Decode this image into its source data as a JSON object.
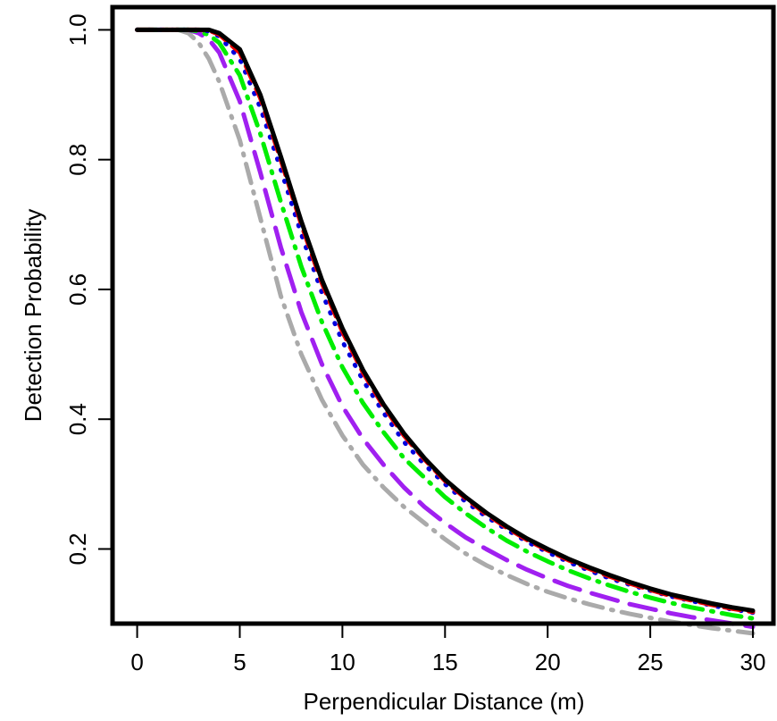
{
  "chart_data": {
    "type": "line",
    "title": "",
    "xlabel": "Perpendicular Distance (m)",
    "ylabel": "Detection Probability",
    "xlim": [
      -1.2,
      31
    ],
    "ylim": [
      0.085,
      1.035
    ],
    "xticks": [
      0,
      5,
      10,
      15,
      20,
      25,
      30
    ],
    "yticks": [
      0.2,
      0.4,
      0.6,
      0.8,
      1.0
    ],
    "xtick_labels": [
      "0",
      "5",
      "10",
      "15",
      "20",
      "25",
      "30"
    ],
    "ytick_labels": [
      "0.2",
      "0.4",
      "0.6",
      "0.8",
      "1.0"
    ],
    "grid": false,
    "legend": "none",
    "series": [
      {
        "color": "#aaaaaa",
        "dash": "dashdot",
        "x": [
          0,
          2,
          2.5,
          3,
          3.5,
          4,
          5,
          6,
          7,
          8,
          9,
          10,
          11,
          12,
          13,
          14,
          15,
          16,
          17,
          18,
          19,
          20,
          21,
          22,
          23,
          24,
          25,
          26,
          27,
          28,
          29,
          30
        ],
        "y": [
          1.0,
          1.0,
          0.995,
          0.98,
          0.955,
          0.92,
          0.83,
          0.71,
          0.59,
          0.5,
          0.43,
          0.375,
          0.33,
          0.295,
          0.265,
          0.24,
          0.215,
          0.193,
          0.175,
          0.16,
          0.146,
          0.134,
          0.124,
          0.115,
          0.107,
          0.1,
          0.094,
          0.088,
          0.083,
          0.078,
          0.074,
          0.07
        ]
      },
      {
        "color": "#a020f0",
        "dash": "longdash",
        "x": [
          0,
          2.5,
          3,
          3.5,
          4,
          5,
          6,
          7,
          8,
          9,
          10,
          11,
          12,
          13,
          14,
          15,
          16,
          17,
          18,
          19,
          20,
          21,
          22,
          23,
          24,
          25,
          26,
          27,
          28,
          29,
          30
        ],
        "y": [
          1.0,
          1.0,
          0.995,
          0.985,
          0.965,
          0.89,
          0.78,
          0.665,
          0.565,
          0.485,
          0.42,
          0.37,
          0.33,
          0.295,
          0.265,
          0.24,
          0.218,
          0.2,
          0.183,
          0.168,
          0.155,
          0.143,
          0.133,
          0.124,
          0.115,
          0.108,
          0.101,
          0.095,
          0.09,
          0.085,
          0.08
        ]
      },
      {
        "color": "#00ee00",
        "dash": "dashdot",
        "x": [
          0,
          2.5,
          3,
          3.5,
          4,
          5,
          6,
          7,
          8,
          9,
          10,
          11,
          12,
          13,
          14,
          15,
          16,
          17,
          18,
          19,
          20,
          21,
          22,
          23,
          24,
          25,
          26,
          27,
          28,
          29,
          30
        ],
        "y": [
          1.0,
          1.0,
          0.998,
          0.992,
          0.98,
          0.93,
          0.84,
          0.735,
          0.635,
          0.55,
          0.48,
          0.425,
          0.38,
          0.34,
          0.31,
          0.28,
          0.255,
          0.233,
          0.213,
          0.196,
          0.181,
          0.167,
          0.155,
          0.144,
          0.134,
          0.125,
          0.117,
          0.11,
          0.104,
          0.098,
          0.093
        ]
      },
      {
        "color": "#0000dd",
        "dash": "dotted",
        "x": [
          0,
          2.5,
          3,
          3.5,
          4,
          5,
          6,
          7,
          8,
          9,
          10,
          11,
          12,
          13,
          14,
          15,
          16,
          17,
          18,
          19,
          20,
          21,
          22,
          23,
          24,
          25,
          26,
          27,
          28,
          29,
          30
        ],
        "y": [
          1.0,
          1.0,
          1.0,
          0.998,
          0.99,
          0.955,
          0.88,
          0.785,
          0.685,
          0.595,
          0.52,
          0.46,
          0.41,
          0.365,
          0.33,
          0.3,
          0.273,
          0.25,
          0.23,
          0.211,
          0.195,
          0.18,
          0.167,
          0.155,
          0.145,
          0.136,
          0.127,
          0.12,
          0.113,
          0.107,
          0.102
        ]
      },
      {
        "color": "#ee0000",
        "dash": "dashed",
        "x": [
          0,
          2.5,
          3,
          3.5,
          4,
          5,
          6,
          7,
          8,
          9,
          10,
          11,
          12,
          13,
          14,
          15,
          16,
          17,
          18,
          19,
          20,
          21,
          22,
          23,
          24,
          25,
          26,
          27,
          28,
          29,
          30
        ],
        "y": [
          1.0,
          1.0,
          1.0,
          0.999,
          0.993,
          0.965,
          0.895,
          0.8,
          0.7,
          0.61,
          0.535,
          0.472,
          0.42,
          0.375,
          0.338,
          0.305,
          0.278,
          0.254,
          0.233,
          0.214,
          0.198,
          0.183,
          0.17,
          0.158,
          0.147,
          0.137,
          0.128,
          0.121,
          0.114,
          0.108,
          0.103
        ]
      },
      {
        "color": "#000000",
        "dash": "solid",
        "x": [
          0,
          2.5,
          3,
          3.5,
          4,
          5,
          6,
          7,
          8,
          9,
          10,
          11,
          12,
          13,
          14,
          15,
          16,
          17,
          18,
          19,
          20,
          21,
          22,
          23,
          24,
          25,
          26,
          27,
          28,
          29,
          30
        ],
        "y": [
          1.0,
          1.0,
          1.0,
          1.0,
          0.995,
          0.97,
          0.9,
          0.805,
          0.705,
          0.615,
          0.54,
          0.476,
          0.423,
          0.378,
          0.34,
          0.307,
          0.28,
          0.256,
          0.235,
          0.216,
          0.2,
          0.185,
          0.172,
          0.16,
          0.149,
          0.139,
          0.13,
          0.123,
          0.116,
          0.11,
          0.105
        ]
      }
    ]
  }
}
